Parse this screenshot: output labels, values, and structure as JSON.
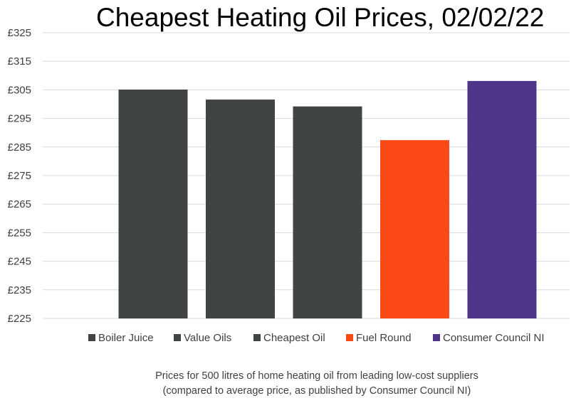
{
  "chart_data": {
    "type": "bar",
    "title": "Cheapest Heating Oil Prices, 02/02/22",
    "categories": [
      "Boiler Juice",
      "Value Oils",
      "Cheapest Oil",
      "Fuel Round",
      "Consumer Council NI"
    ],
    "values": [
      305.1,
      301.6,
      299.2,
      287.4,
      308.1
    ],
    "colors": [
      "#404442",
      "#404442",
      "#404442",
      "#fc4a16",
      "#4e3589"
    ],
    "ylim": [
      225,
      325
    ],
    "yticks": [
      "£225",
      "£235",
      "£245",
      "£255",
      "£265",
      "£275",
      "£285",
      "£295",
      "£305",
      "£315",
      "£325"
    ],
    "grid": true,
    "legend": "bottom",
    "xlabel": "",
    "ylabel": ""
  },
  "caption": {
    "line1": "Prices for 500 litres of home heating oil from leading low-cost suppliers",
    "line2": "(compared to average price, as published by Consumer Council NI)"
  }
}
